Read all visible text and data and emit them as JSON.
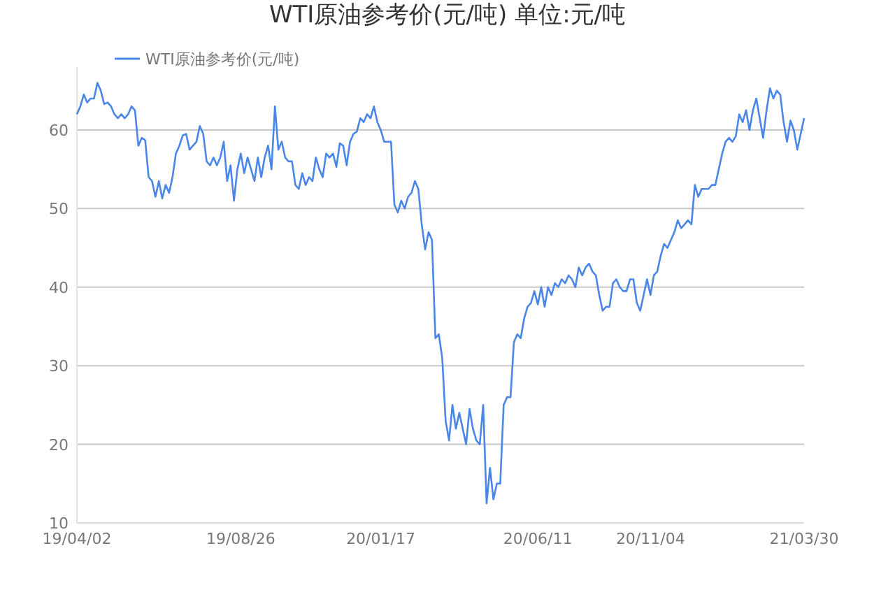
{
  "chart_data": {
    "type": "line",
    "title": "WTI原油参考价(元/吨) 单位:元/吨",
    "legend": "top left",
    "grid": "y",
    "marker": "none",
    "line_style": "solid",
    "ylim": [
      10,
      68
    ],
    "yticks": [
      10,
      20,
      30,
      40,
      50,
      60
    ],
    "categories": [
      "19/04/02",
      null,
      null,
      null,
      null,
      null,
      null,
      null,
      null,
      null,
      null,
      null,
      null,
      null,
      null,
      null,
      null,
      null,
      null,
      null,
      null,
      null,
      null,
      null,
      null,
      null,
      null,
      null,
      null,
      null,
      null,
      null,
      null,
      null,
      null,
      null,
      null,
      null,
      null,
      null,
      null,
      null,
      null,
      null,
      null,
      null,
      null,
      null,
      "19/08/26",
      null,
      null,
      null,
      null,
      null,
      null,
      null,
      null,
      null,
      null,
      null,
      null,
      null,
      null,
      null,
      null,
      null,
      null,
      null,
      null,
      null,
      null,
      null,
      null,
      null,
      null,
      null,
      null,
      null,
      null,
      null,
      null,
      null,
      null,
      null,
      null,
      null,
      null,
      null,
      null,
      "20/01/17",
      null,
      null,
      null,
      null,
      null,
      null,
      null,
      null,
      null,
      null,
      null,
      null,
      null,
      null,
      null,
      null,
      null,
      null,
      null,
      null,
      null,
      null,
      null,
      null,
      null,
      null,
      null,
      null,
      null,
      null,
      null,
      null,
      null,
      null,
      null,
      null,
      null,
      null,
      null,
      null,
      null,
      null,
      null,
      null,
      null,
      "20/06/11",
      null,
      null,
      null,
      null,
      null,
      null,
      null,
      null,
      null,
      null,
      null,
      null,
      null,
      null,
      null,
      null,
      null,
      null,
      null,
      null,
      null,
      null,
      null,
      null,
      null,
      null,
      null,
      null,
      null,
      null,
      null,
      null,
      "20/11/04",
      null,
      null,
      null,
      null,
      null,
      null,
      null,
      null,
      null,
      null,
      null,
      null,
      null,
      null,
      null,
      null,
      null,
      null,
      null,
      null,
      null,
      null,
      null,
      null,
      null,
      null,
      null,
      null,
      null,
      null,
      null,
      null,
      null,
      null,
      null,
      null,
      null,
      null,
      null,
      null,
      null,
      null,
      null,
      null,
      "21/03/30"
    ],
    "series": [
      {
        "name": "WTI原油参考价(元/吨)",
        "color": "#4a86e8",
        "values": [
          62,
          63,
          64.5,
          63.5,
          64,
          64,
          66,
          65,
          63.3,
          63.5,
          63,
          62,
          61.5,
          62,
          61.5,
          62,
          63,
          62.5,
          58,
          59,
          58.7,
          54,
          53.5,
          51.5,
          53.5,
          51.3,
          53,
          52,
          54,
          57,
          58,
          59.3,
          59.5,
          57.5,
          58,
          58.5,
          60.5,
          59.5,
          56,
          55.5,
          56.5,
          55.5,
          56.5,
          58.5,
          53.5,
          55.5,
          51,
          55,
          57,
          54.5,
          56.5,
          55,
          53.5,
          56.5,
          54,
          56.5,
          58,
          55,
          63,
          57.5,
          58.5,
          56.5,
          56,
          56,
          53,
          52.5,
          54.5,
          53,
          54,
          53.5,
          56.5,
          55,
          54,
          57,
          56.5,
          57,
          55.3,
          58.3,
          58,
          55.5,
          58.5,
          59.5,
          59.8,
          61.5,
          61,
          62,
          61.5,
          63,
          61,
          60,
          58.5,
          58.5,
          58.5,
          50.5,
          49.5,
          51,
          50,
          51.5,
          52,
          53.5,
          52.5,
          48,
          44.8,
          47,
          46,
          33.5,
          34,
          31,
          23,
          20.5,
          25,
          22,
          24,
          22,
          20,
          24.5,
          22,
          20.5,
          20,
          25,
          12.5,
          17,
          13,
          15,
          15,
          25,
          26,
          26,
          33,
          34,
          33.5,
          36,
          37.5,
          38,
          39.5,
          37.8,
          40,
          37.5,
          40,
          39,
          40.5,
          40,
          41,
          40.5,
          41.5,
          41,
          40,
          42.5,
          41.5,
          42.5,
          43,
          42,
          41.5,
          39,
          37,
          37.5,
          37.5,
          40.5,
          41,
          40,
          39.5,
          39.5,
          41,
          41,
          38,
          37,
          39,
          41,
          39,
          41.5,
          42,
          44,
          45.5,
          45,
          46,
          47,
          48.5,
          47.5,
          48,
          48.5,
          48,
          53,
          51.5,
          52.5,
          52.5,
          52.5,
          53,
          53,
          55,
          57,
          58.5,
          59,
          58.5,
          59.2,
          62,
          61,
          62.5,
          60,
          62.5,
          64,
          61.5,
          59,
          62.5,
          65.3,
          64,
          65,
          64.5,
          61,
          58.5,
          61.2,
          60,
          57.5,
          59.5,
          61.5
        ]
      }
    ]
  }
}
